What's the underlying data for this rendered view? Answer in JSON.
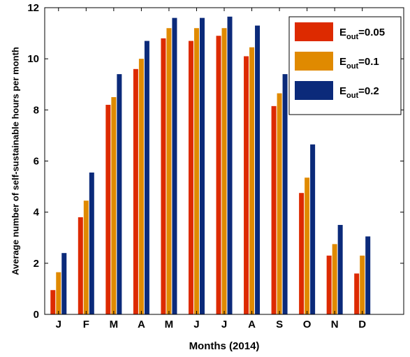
{
  "chart_data": {
    "type": "bar",
    "categories": [
      "J",
      "F",
      "M",
      "A",
      "M",
      "J",
      "J",
      "A",
      "S",
      "O",
      "N",
      "D"
    ],
    "series": [
      {
        "name": "E_out=0.05",
        "legend_main": "E",
        "legend_sub": "out",
        "legend_value": "=0.05",
        "color": "#dd2a00",
        "values": [
          0.95,
          3.8,
          8.2,
          9.6,
          10.8,
          10.7,
          10.9,
          10.1,
          8.15,
          4.75,
          2.3,
          1.6
        ]
      },
      {
        "name": "E_out=0.1",
        "legend_main": "E",
        "legend_sub": "out",
        "legend_value": "=0.1",
        "color": "#e08a00",
        "values": [
          1.65,
          4.45,
          8.5,
          10.0,
          11.2,
          11.2,
          11.2,
          10.45,
          8.65,
          5.35,
          2.75,
          2.3
        ]
      },
      {
        "name": "E_out=0.2",
        "legend_main": "E",
        "legend_sub": "out",
        "legend_value": "=0.2",
        "color": "#0b2a7a",
        "values": [
          2.4,
          5.55,
          9.4,
          10.7,
          11.6,
          11.6,
          11.65,
          11.3,
          9.4,
          6.65,
          3.5,
          3.05
        ]
      }
    ],
    "title": "",
    "xlabel": "Months (2014)",
    "ylabel": "Average number of self-sustainable hours per month",
    "ylim": [
      0,
      12
    ],
    "yticks": [
      0,
      2,
      4,
      6,
      8,
      10,
      12
    ],
    "grid": false,
    "legend_position": "top-right"
  }
}
